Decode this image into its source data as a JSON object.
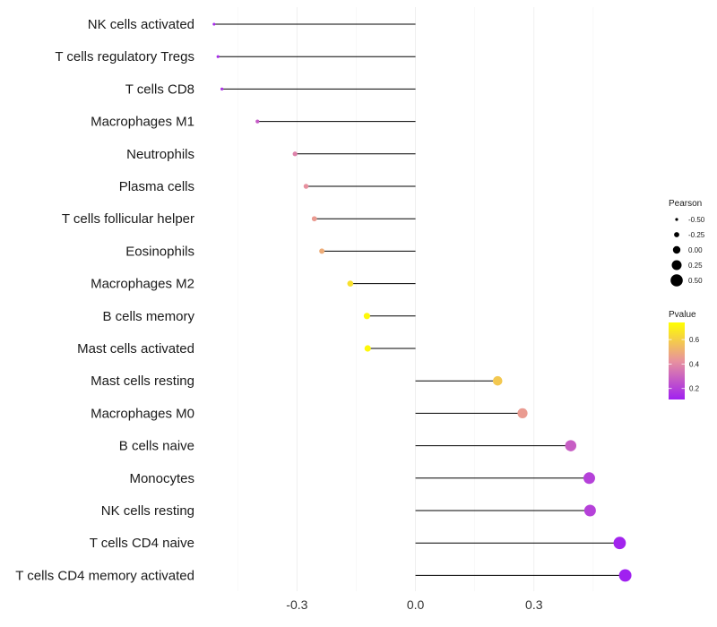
{
  "chart_data": {
    "type": "lollipop",
    "categories": [
      "NK cells activated",
      "T cells regulatory  Tregs",
      "T cells CD8",
      "Macrophages M1",
      "Neutrophils",
      "Plasma cells",
      "T cells follicular helper",
      "Eosinophils",
      "Macrophages M2",
      "B cells memory",
      "Mast cells activated",
      "Mast cells resting",
      "Macrophages M0",
      "B cells naive",
      "Monocytes",
      "NK cells resting",
      "T cells CD4 naive",
      "T cells CD4 memory activated"
    ],
    "values": [
      -0.51,
      -0.5,
      -0.49,
      -0.4,
      -0.305,
      -0.277,
      -0.256,
      -0.237,
      -0.165,
      -0.123,
      -0.121,
      0.208,
      0.271,
      0.393,
      0.44,
      0.442,
      0.517,
      0.531
    ],
    "pvalues": [
      0.13,
      0.14,
      0.16,
      0.27,
      0.38,
      0.42,
      0.45,
      0.5,
      0.65,
      0.72,
      0.72,
      0.58,
      0.45,
      0.28,
      0.2,
      0.2,
      0.12,
      0.11
    ],
    "xlim": [
      -0.53,
      0.6
    ],
    "x_ticks": [
      -0.3,
      0.0,
      0.3
    ],
    "x_tick_labels": [
      "-0.3",
      "0.0",
      "0.3"
    ],
    "size_legend": {
      "title": "Pearson",
      "values": [
        -0.5,
        -0.25,
        0.0,
        0.25,
        0.5
      ],
      "labels": [
        "-0.50",
        "-0.25",
        "0.00",
        "0.25",
        "0.50"
      ]
    },
    "color_legend": {
      "title": "Pvalue",
      "range": [
        0.11,
        0.74
      ],
      "ticks": [
        0.2,
        0.4,
        0.6
      ],
      "tick_labels": [
        "0.2",
        "0.4",
        "0.6"
      ],
      "low_color": "#a020f0",
      "mid_color": "#e8929e",
      "high_color": "#ffff00"
    },
    "grid": true,
    "legend_position": "right"
  }
}
